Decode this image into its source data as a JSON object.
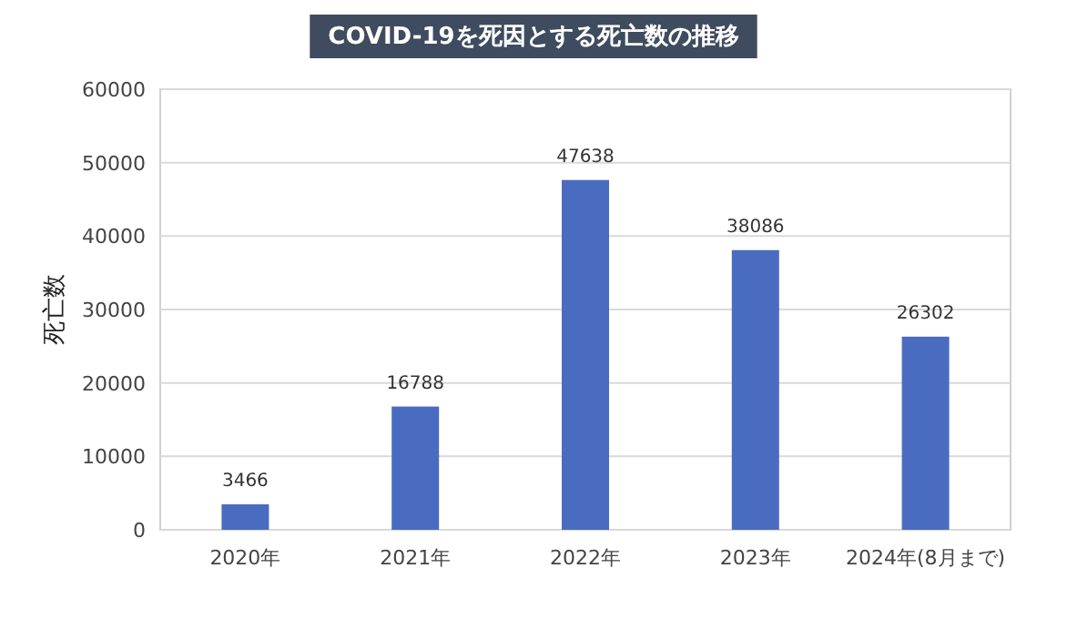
{
  "chart_data": {
    "type": "bar",
    "title": "COVID-19を死因とする死亡数の推移",
    "ylabel": "死亡数",
    "categories": [
      "2020年",
      "2021年",
      "2022年",
      "2023年",
      "2024年(8月まで)"
    ],
    "values": [
      3466,
      16788,
      47638,
      38086,
      26302
    ],
    "color": "#4a6cc0",
    "ylim": [
      0,
      60000
    ],
    "yticks": [
      0,
      10000,
      20000,
      30000,
      40000,
      50000,
      60000
    ],
    "grid": "y",
    "data_labels": true
  }
}
